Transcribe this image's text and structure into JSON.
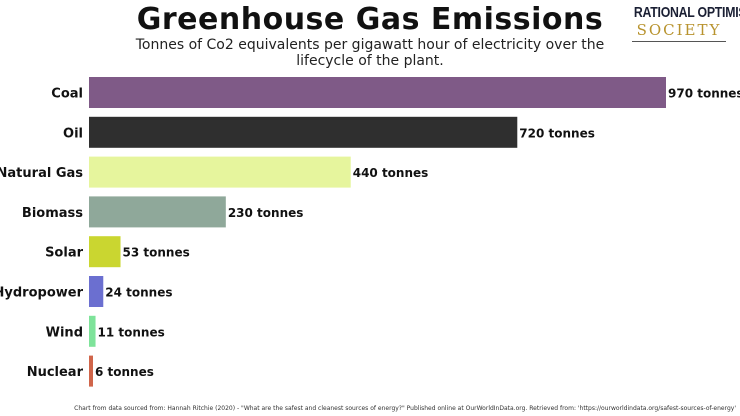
{
  "logo": {
    "line1": "RATIONAL OPTIMIST",
    "line2": "SOCIETY"
  },
  "source_note": "Chart from data sourced from: Hannah Ritchie (2020) - \"What are the safest and cleanest sources of energy?\" Published online at OurWorldInData.org. Retrieved from: 'https://ourworldindata.org/safest-sources-of-energy'",
  "chart_data": {
    "type": "bar",
    "orientation": "horizontal",
    "title": "Greenhouse Gas Emissions",
    "subtitle": "Tonnes of Co2 equivalents per gigawatt hour of electricity over the lifecycle of the plant.",
    "categories": [
      "Coal",
      "Oil",
      "Natural Gas",
      "Biomass",
      "Solar",
      "Hydropower",
      "Wind",
      "Nuclear"
    ],
    "values": [
      970,
      720,
      440,
      230,
      53,
      24,
      11,
      6
    ],
    "data_labels": [
      "970 tonnes",
      "720 tonnes",
      "440 tonnes",
      "230 tonnes",
      "53 tonnes",
      "24 tonnes",
      "11 tonnes",
      "6 tonnes"
    ],
    "colors": [
      "#7f5a87",
      "#2f2f2f",
      "#e6f59d",
      "#8fa89a",
      "#cad630",
      "#6b6fd0",
      "#7ee39a",
      "#d0654a"
    ],
    "xlim": [
      0,
      970
    ],
    "grid": false
  }
}
